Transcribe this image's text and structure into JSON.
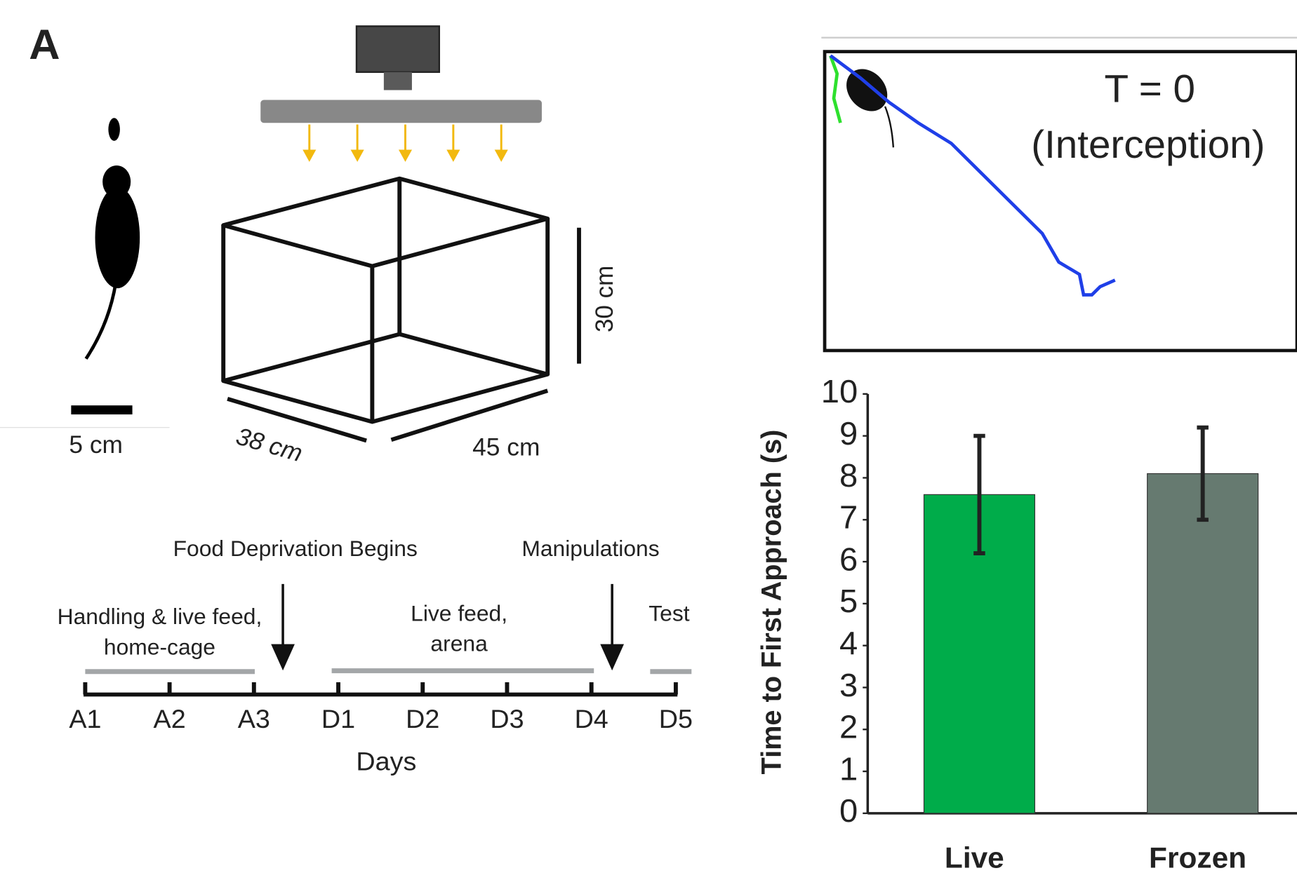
{
  "panel_label": "A",
  "setup": {
    "scale_bar": "5 cm",
    "width": "38 cm",
    "length": "45 cm",
    "height": "30 cm"
  },
  "tracking": {
    "annotation": "T = 0",
    "annotation_sub": "(Interception)"
  },
  "timeline": {
    "events": [
      "Food Deprivation Begins",
      "Manipulations"
    ],
    "phases": [
      {
        "lines": [
          "Handling & live feed,",
          "home-cage"
        ]
      },
      {
        "lines": [
          "Live feed,",
          "arena"
        ]
      },
      {
        "lines": [
          "Test"
        ]
      }
    ],
    "days": [
      "A1",
      "A2",
      "A3",
      "D1",
      "D2",
      "D3",
      "D4",
      "D5"
    ],
    "axis_label": "Days"
  },
  "chart_data": {
    "type": "bar",
    "categories": [
      "Live",
      "Frozen"
    ],
    "values": [
      7.6,
      8.1
    ],
    "errors": [
      1.4,
      1.1
    ],
    "colors": [
      "#00ac4a",
      "#667a70"
    ],
    "ylabel": "Time to First Approach (s)",
    "ylim": [
      0,
      10
    ],
    "yticks": [
      0,
      1,
      2,
      3,
      4,
      5,
      6,
      7,
      8,
      9,
      10
    ]
  }
}
